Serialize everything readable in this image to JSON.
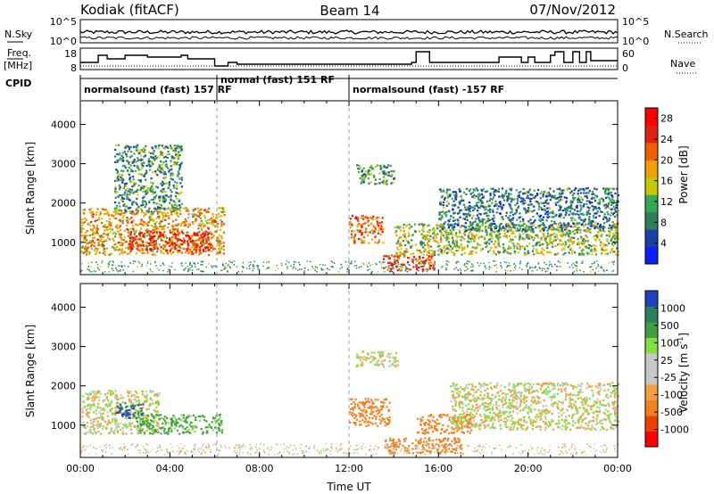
{
  "header": {
    "station": "Kodiak (fitACF)",
    "beam": "Beam 14",
    "date": "07/Nov/2012"
  },
  "strips": {
    "nsky_label": "N.Sky",
    "nsearch_label": "N.Search",
    "nsky_ticks": [
      "10^5",
      "10^0"
    ],
    "nsearch_ticks": [
      "10^5",
      "10^0"
    ],
    "freq_label_1": "Freq.",
    "freq_label_2": "[MHz]",
    "freq_ticks": [
      "18",
      "8"
    ],
    "nave_label": "Nave",
    "nave_ticks": [
      "60",
      "0"
    ],
    "cpid_label": "CPID",
    "cpid_segments": [
      {
        "label": "normalsound (fast) 157 RF",
        "start_hour": 0,
        "end_hour": 6.1
      },
      {
        "label": "normal (fast) 151 RF",
        "start_hour": 6.1,
        "end_hour": 12.0
      },
      {
        "label": "normalsound (fast) -157 RF",
        "start_hour": 12.0,
        "end_hour": 24
      }
    ]
  },
  "colors": {
    "power": [
      "#0a1eff",
      "#1c3fa8",
      "#2f7d5a",
      "#35a853",
      "#c8c800",
      "#f0a000",
      "#f06000",
      "#e02010",
      "#ff0000"
    ],
    "velocity": [
      "#ff0000",
      "#f04000",
      "#f08020",
      "#f0a040",
      "#c8c8c8",
      "#c8c8c8",
      "#80e040",
      "#40a040",
      "#2a8060",
      "#2040c0"
    ]
  },
  "chart_data": [
    {
      "type": "heatmap",
      "title": "",
      "ylabel": "Slant Range [km]",
      "xlabel": "",
      "xlim_hours": [
        0,
        24
      ],
      "ylim_km": [
        180,
        4600
      ],
      "yticks": [
        "1000",
        "2000",
        "3000",
        "4000"
      ],
      "colorbar": {
        "label": "Power [dB]",
        "ticks": [
          "4",
          "8",
          "12",
          "16",
          "20",
          "24",
          "28"
        ],
        "range": [
          0,
          30
        ]
      },
      "echo_regions": [
        {
          "t0": 0.0,
          "t1": 6.4,
          "r0": 700,
          "r1": 1900,
          "value": 18
        },
        {
          "t0": 2.0,
          "t1": 5.8,
          "r0": 800,
          "r1": 1300,
          "value": 26
        },
        {
          "t0": 1.5,
          "t1": 4.5,
          "r0": 1800,
          "r1": 3500,
          "value": 10
        },
        {
          "t0": 12.0,
          "t1": 13.5,
          "r0": 1000,
          "r1": 1700,
          "value": 22
        },
        {
          "t0": 13.5,
          "t1": 15.8,
          "r0": 300,
          "r1": 700,
          "value": 24
        },
        {
          "t0": 14.0,
          "t1": 24.0,
          "r0": 700,
          "r1": 1500,
          "value": 14
        },
        {
          "t0": 16.0,
          "t1": 24.0,
          "r0": 1300,
          "r1": 2400,
          "value": 8
        },
        {
          "t0": 12.3,
          "t1": 14.0,
          "r0": 2500,
          "r1": 3000,
          "value": 10
        }
      ]
    },
    {
      "type": "heatmap",
      "title": "",
      "ylabel": "Slant Range [km]",
      "xlabel": "Time UT",
      "xlim_hours": [
        0,
        24
      ],
      "ylim_km": [
        180,
        4600
      ],
      "yticks": [
        "1000",
        "2000",
        "3000",
        "4000"
      ],
      "xticks": [
        "00:00",
        "04:00",
        "08:00",
        "12:00",
        "16:00",
        "20:00",
        "00:00"
      ],
      "colorbar": {
        "label": "Velocity [m s-1]",
        "label_main": "Velocity [m s",
        "label_sup": "-1",
        "label_end": "]",
        "ticks": [
          "-1000",
          "-500",
          "-100",
          "-25",
          "25",
          "100",
          "500",
          "1000"
        ],
        "range": [
          -1250,
          1250
        ]
      },
      "echo_regions": [
        {
          "t0": 0.0,
          "t1": 3.5,
          "r0": 800,
          "r1": 1900,
          "value": 0
        },
        {
          "t0": 2.5,
          "t1": 6.3,
          "r0": 800,
          "r1": 1300,
          "value": 150
        },
        {
          "t0": 1.5,
          "t1": 2.8,
          "r0": 1200,
          "r1": 1600,
          "value": 1000
        },
        {
          "t0": 12.0,
          "t1": 13.8,
          "r0": 1000,
          "r1": 1700,
          "value": -200
        },
        {
          "t0": 13.5,
          "t1": 17.0,
          "r0": 300,
          "r1": 700,
          "value": -200
        },
        {
          "t0": 15.0,
          "t1": 17.5,
          "r0": 800,
          "r1": 1300,
          "value": -300
        },
        {
          "t0": 16.5,
          "t1": 24.0,
          "r0": 900,
          "r1": 2100,
          "value": 0
        },
        {
          "t0": 12.3,
          "t1": 14.2,
          "r0": 2500,
          "r1": 2900,
          "value": 0
        }
      ]
    }
  ]
}
